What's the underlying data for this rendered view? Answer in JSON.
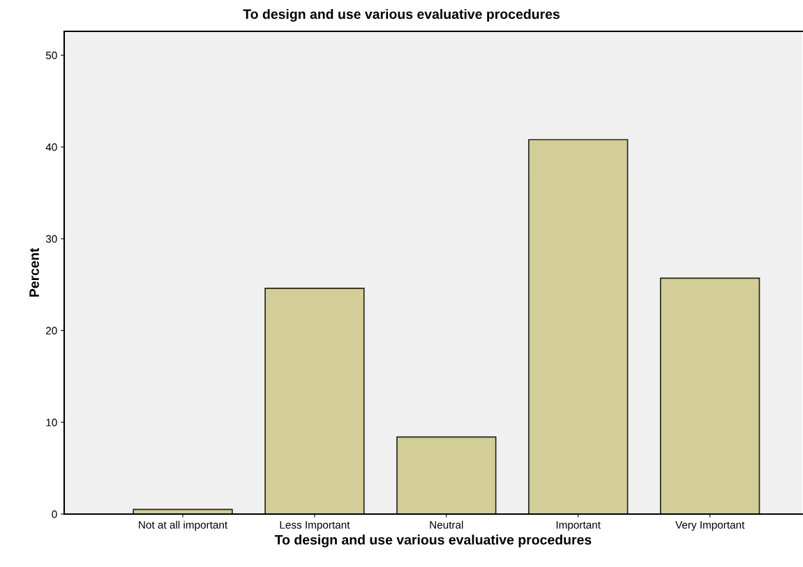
{
  "chart_data": {
    "type": "bar",
    "title": "To design and use various evaluative procedures",
    "xlabel": "To design and use various evaluative procedures",
    "ylabel": "Percent",
    "categories": [
      "Not at all important",
      "Less Important",
      "Neutral",
      "Important",
      "Very Important"
    ],
    "values": [
      0.5,
      24.6,
      8.4,
      40.8,
      25.7
    ],
    "color": "#d3ce97",
    "ylim": [
      0,
      52.6
    ],
    "yticks": [
      0,
      10,
      20,
      30,
      40,
      50
    ],
    "grid": false,
    "legend": false
  }
}
